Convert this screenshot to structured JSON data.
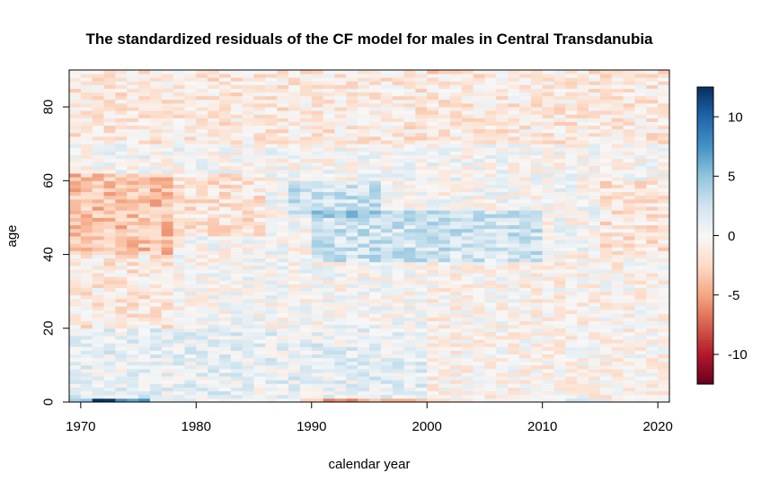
{
  "chart_data": {
    "type": "heatmap",
    "title": "The standardized residuals of the CF model for males in Central Transdanubia",
    "xlabel": "calendar year",
    "ylabel": "age",
    "x": {
      "start": 1969,
      "end": 2021,
      "step": 1
    },
    "y": {
      "start": 0,
      "end": 90,
      "step": 1
    },
    "xlim": [
      1969,
      2021
    ],
    "ylim": [
      0,
      90
    ],
    "x_ticks": [
      1970,
      1980,
      1990,
      2000,
      2010,
      2020
    ],
    "y_ticks": [
      0,
      20,
      40,
      60,
      80
    ],
    "colorbar": {
      "range": [
        -12.5,
        12.5
      ],
      "ticks": [
        10,
        5,
        0,
        -5,
        -10
      ],
      "palette": [
        "#67001F",
        "#B2182B",
        "#D6604D",
        "#F4A582",
        "#FDDBC7",
        "#F7F7F7",
        "#D1E5F0",
        "#92C5DE",
        "#4393C3",
        "#2166AC",
        "#053061"
      ]
    },
    "regions": [
      {
        "years": [
          1969,
          1978
        ],
        "ages": [
          40,
          62
        ],
        "value": -3.5
      },
      {
        "years": [
          1969,
          1978
        ],
        "ages": [
          20,
          40
        ],
        "value": -1.2
      },
      {
        "years": [
          1978,
          1986
        ],
        "ages": [
          45,
          62
        ],
        "value": -1.5
      },
      {
        "years": [
          1969,
          2021
        ],
        "ages": [
          70,
          90
        ],
        "value": -1.2
      },
      {
        "years": [
          1988,
          1996
        ],
        "ages": [
          50,
          60
        ],
        "value": 2.5
      },
      {
        "years": [
          1990,
          2010
        ],
        "ages": [
          38,
          52
        ],
        "value": 2.5
      },
      {
        "years": [
          1969,
          2000
        ],
        "ages": [
          0,
          20
        ],
        "value": 1.0
      },
      {
        "years": [
          2000,
          2021
        ],
        "ages": [
          0,
          40
        ],
        "value": -0.5
      },
      {
        "years": [
          2015,
          2021
        ],
        "ages": [
          40,
          60
        ],
        "value": -1.5
      }
    ],
    "age0_row": [
      {
        "years": [
          1969,
          1971
        ],
        "value": 4
      },
      {
        "years": [
          1971,
          1973
        ],
        "value": 12
      },
      {
        "years": [
          1973,
          1976
        ],
        "value": 7
      },
      {
        "years": [
          1976,
          1980
        ],
        "value": 2
      },
      {
        "years": [
          1989,
          1991
        ],
        "value": -3
      },
      {
        "years": [
          1991,
          1994
        ],
        "value": -6
      },
      {
        "years": [
          1994,
          2000
        ],
        "value": -4
      },
      {
        "years": [
          2000,
          2004
        ],
        "value": -2
      },
      {
        "years": [
          2012,
          2016
        ],
        "value": 2
      }
    ],
    "top_row": [
      {
        "years": [
          2000,
          2001
        ],
        "value": -4
      },
      {
        "years": [
          2001,
          2003
        ],
        "value": -3
      }
    ]
  }
}
